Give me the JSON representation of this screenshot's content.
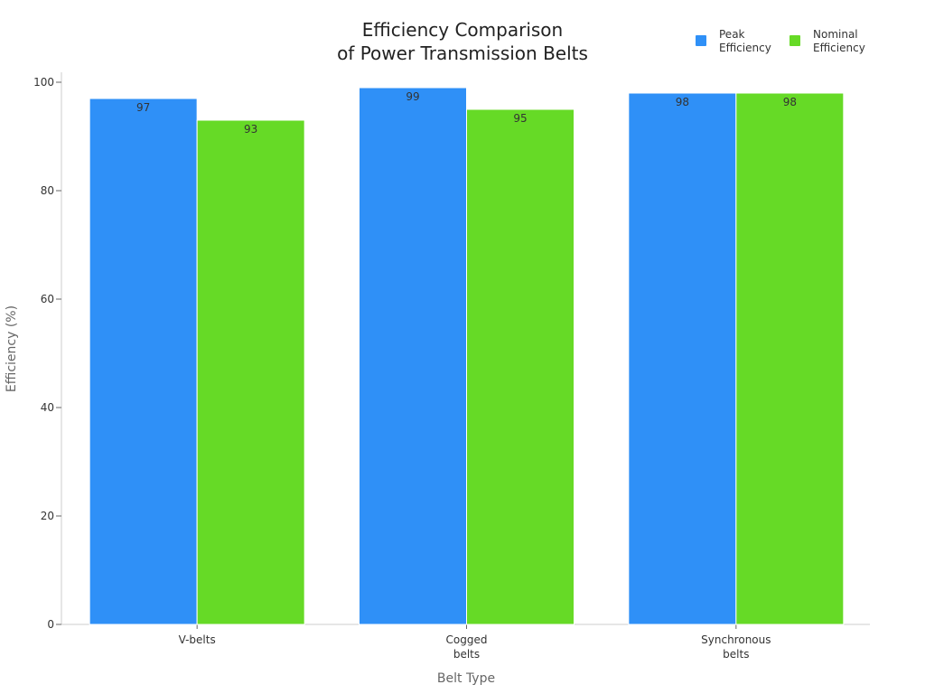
{
  "chart_data": {
    "type": "bar",
    "title": [
      "Efficiency Comparison",
      "of Power Transmission Belts"
    ],
    "xlabel": "Belt Type",
    "ylabel": "Efficiency (%)",
    "categories": [
      [
        "V-belts"
      ],
      [
        "Cogged",
        "belts"
      ],
      [
        "Synchronous",
        "belts"
      ]
    ],
    "series": [
      {
        "name": [
          "Peak",
          "Efficiency"
        ],
        "values": [
          97,
          99,
          98
        ],
        "color": "#2f90f7"
      },
      {
        "name": [
          "Nominal",
          "Efficiency"
        ],
        "values": [
          93,
          95,
          98
        ],
        "color": "#66da26"
      }
    ],
    "ylim": [
      0,
      100
    ],
    "yticks": [
      "0",
      "20",
      "40",
      "60",
      "80",
      "100"
    ],
    "grid": false,
    "legend_position": "top-right",
    "data_labels": true
  }
}
